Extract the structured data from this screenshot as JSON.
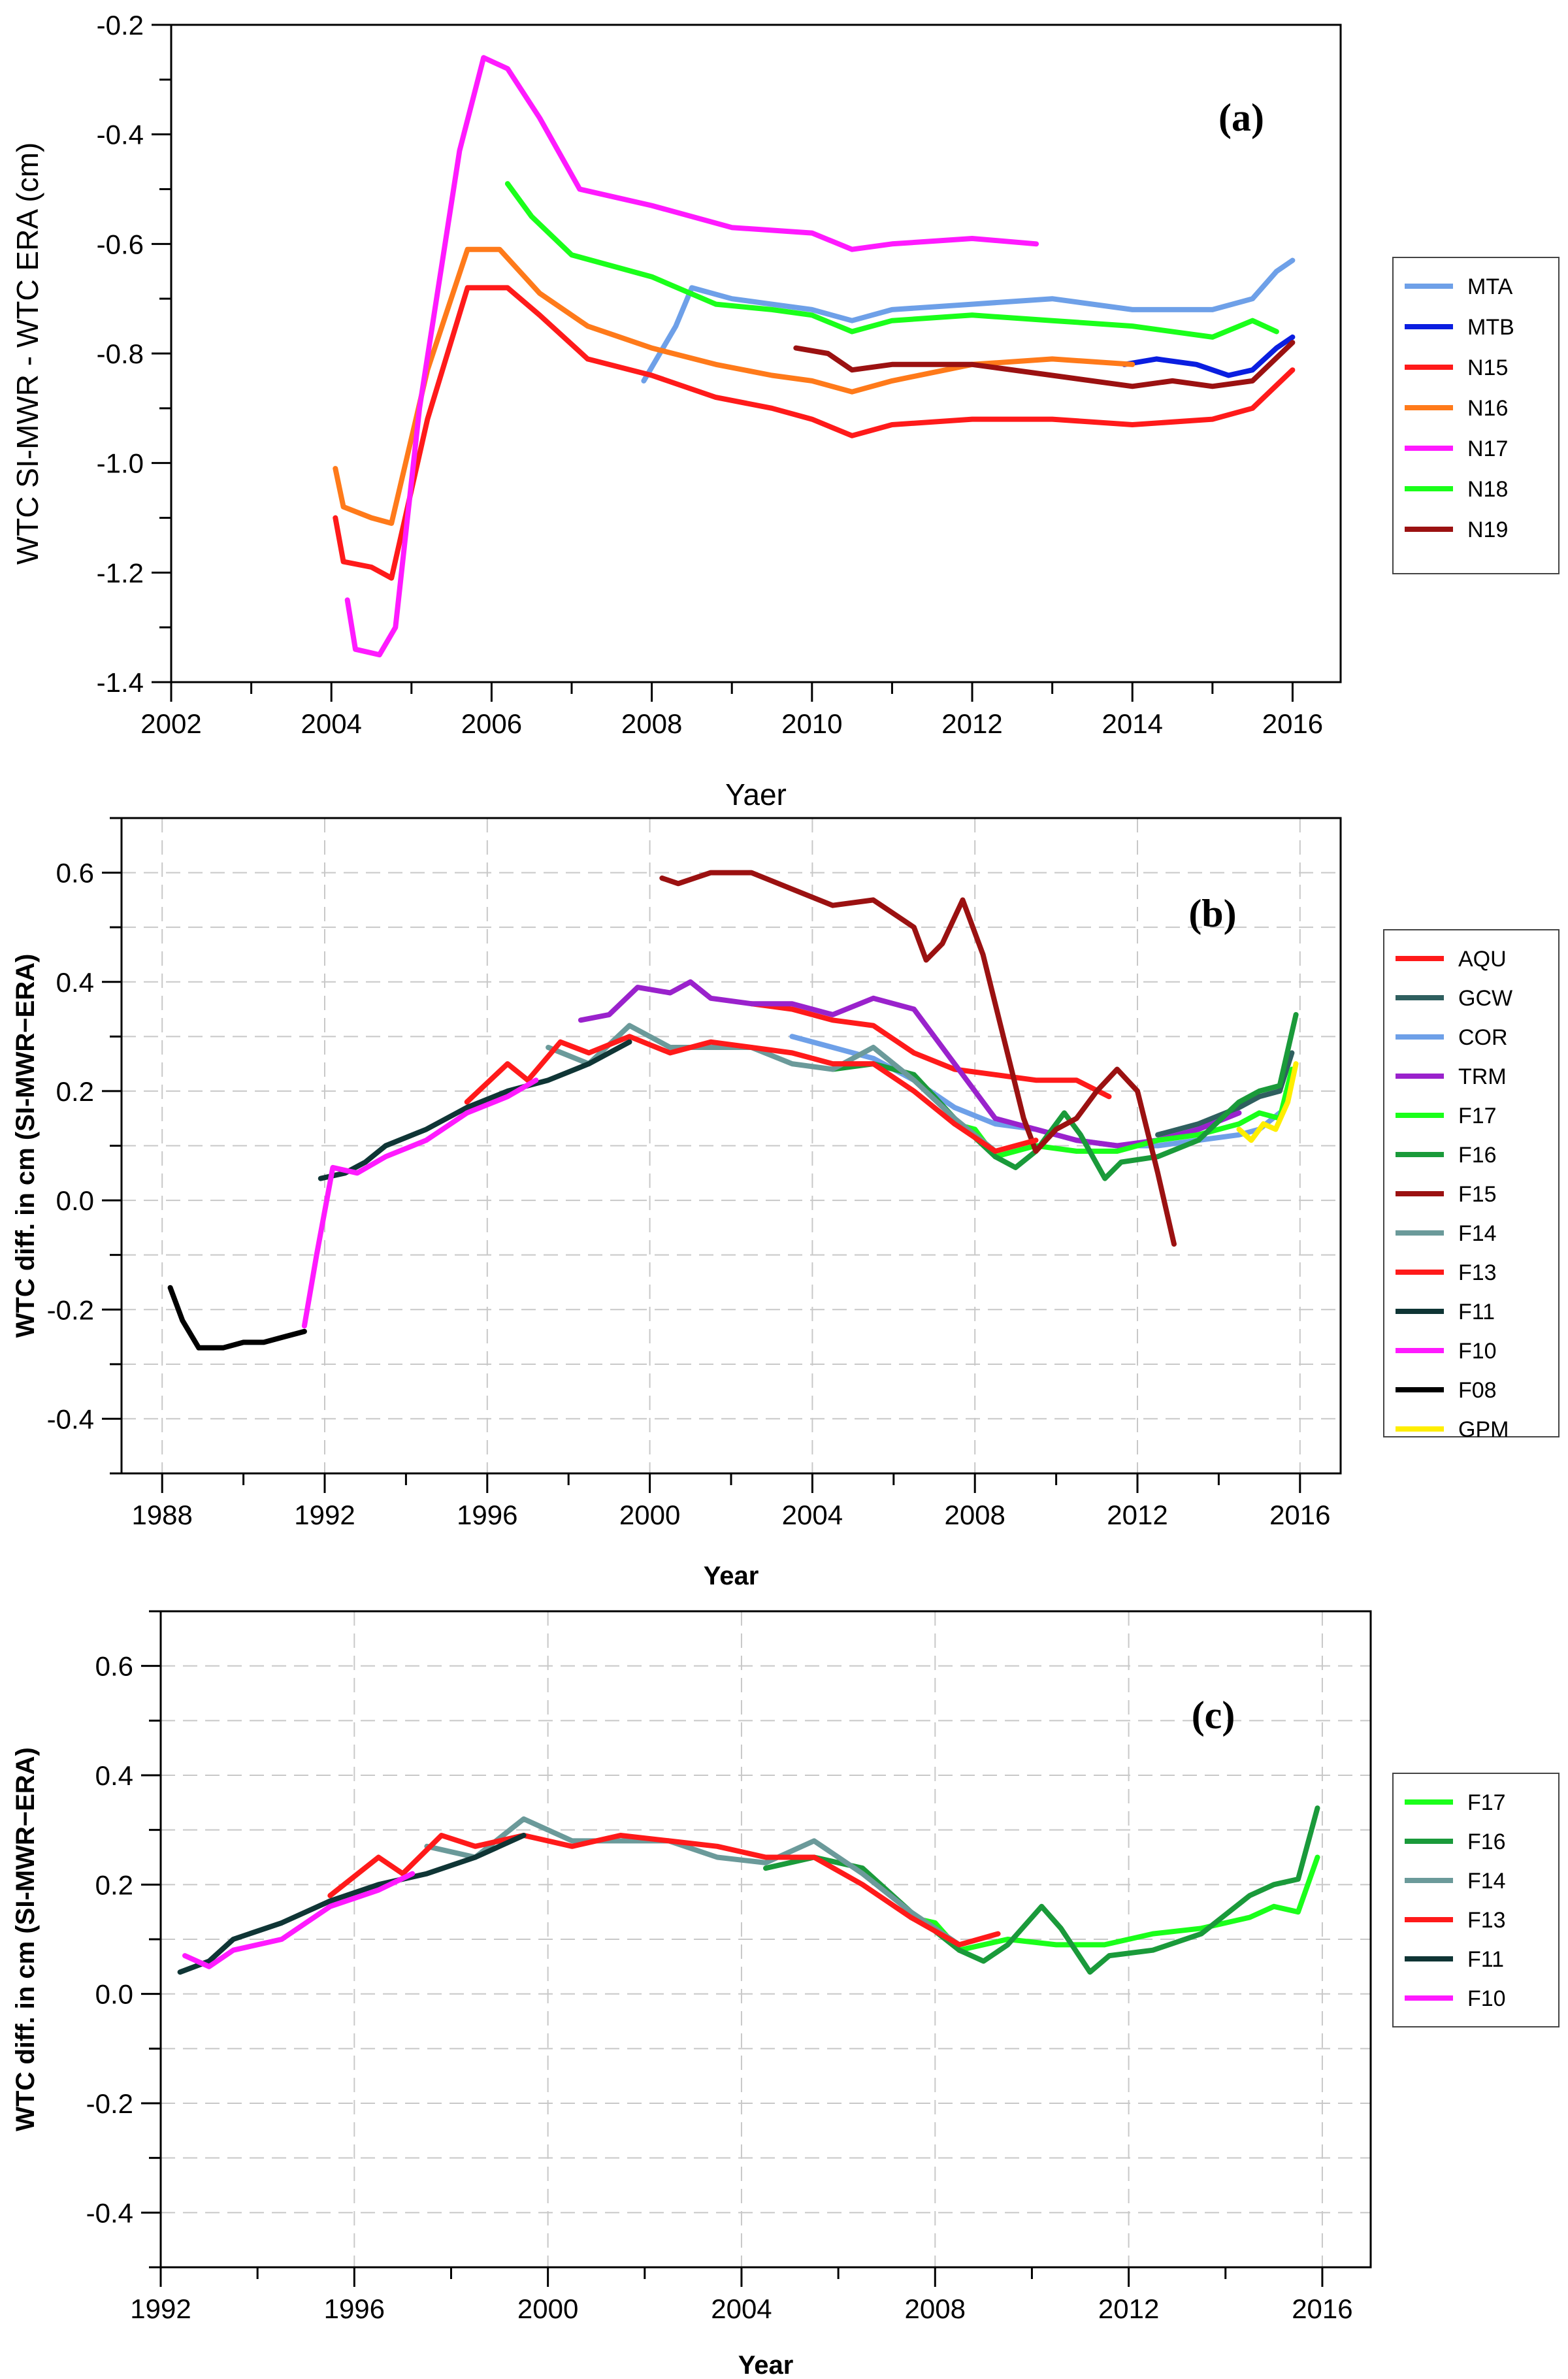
{
  "chart_data": [
    {
      "type": "line",
      "panel_label": "(a)",
      "xlabel": "Yaer",
      "ylabel": "WTC SI-MWR - WTC ERA (cm)",
      "xlim": [
        2002,
        2016.6
      ],
      "ylim": [
        -1.4,
        -0.2
      ],
      "x_ticks": [
        2002,
        2004,
        2006,
        2008,
        2010,
        2012,
        2014,
        2016
      ],
      "y_ticks": [
        -1.4,
        -1.2,
        -1.0,
        -0.8,
        -0.6,
        -0.4,
        -0.2
      ],
      "x_tick_labels": [
        "2002",
        "2004",
        "2006",
        "2008",
        "2010",
        "2012",
        "2014",
        "2016"
      ],
      "y_tick_labels": [
        "-1.4",
        "-1.2",
        "-1.0",
        "-0.8",
        "-0.6",
        "-0.4",
        "-0.2"
      ],
      "grid": false,
      "legend_position": "right",
      "series": [
        {
          "name": "MTA",
          "color": "#6ea0e8",
          "x": [
            2007.9,
            2008.3,
            2008.5,
            2009.0,
            2009.5,
            2010.0,
            2010.5,
            2011.0,
            2012.0,
            2013.0,
            2014.0,
            2014.5,
            2015.0,
            2015.5,
            2015.8,
            2016.0
          ],
          "y": [
            -0.85,
            -0.75,
            -0.68,
            -0.7,
            -0.71,
            -0.72,
            -0.74,
            -0.72,
            -0.71,
            -0.7,
            -0.72,
            -0.72,
            -0.72,
            -0.7,
            -0.65,
            -0.63
          ]
        },
        {
          "name": "MTB",
          "color": "#0a1ee0",
          "x": [
            2013.9,
            2014.3,
            2014.8,
            2015.2,
            2015.5,
            2015.8,
            2016.0
          ],
          "y": [
            -0.82,
            -0.81,
            -0.82,
            -0.84,
            -0.83,
            -0.79,
            -0.77
          ]
        },
        {
          "name": "N15",
          "color": "#ff1a1a",
          "x": [
            2004.05,
            2004.15,
            2004.5,
            2004.75,
            2005.2,
            2005.7,
            2006.2,
            2006.6,
            2007.2,
            2008.0,
            2008.8,
            2009.5,
            2010.0,
            2010.5,
            2011.0,
            2012.0,
            2013.0,
            2014.0,
            2015.0,
            2015.5,
            2016.0
          ],
          "y": [
            -1.1,
            -1.18,
            -1.19,
            -1.21,
            -0.92,
            -0.68,
            -0.68,
            -0.73,
            -0.81,
            -0.84,
            -0.88,
            -0.9,
            -0.92,
            -0.95,
            -0.93,
            -0.92,
            -0.92,
            -0.93,
            -0.92,
            -0.9,
            -0.83
          ]
        },
        {
          "name": "N16",
          "color": "#ff7a1a",
          "x": [
            2004.05,
            2004.15,
            2004.5,
            2004.75,
            2005.2,
            2005.7,
            2006.1,
            2006.6,
            2007.2,
            2008.0,
            2008.8,
            2009.5,
            2010.0,
            2010.5,
            2011.0,
            2012.0,
            2013.0,
            2014.0
          ],
          "y": [
            -1.01,
            -1.08,
            -1.1,
            -1.11,
            -0.83,
            -0.61,
            -0.61,
            -0.69,
            -0.75,
            -0.79,
            -0.82,
            -0.84,
            -0.85,
            -0.87,
            -0.85,
            -0.82,
            -0.81,
            -0.82
          ]
        },
        {
          "name": "N17",
          "color": "#ff1aff",
          "x": [
            2004.2,
            2004.3,
            2004.6,
            2004.8,
            2005.1,
            2005.6,
            2005.9,
            2006.2,
            2006.6,
            2007.1,
            2008.0,
            2009.0,
            2010.0,
            2010.5,
            2011.0,
            2012.0,
            2012.8
          ],
          "y": [
            -1.25,
            -1.34,
            -1.35,
            -1.3,
            -0.9,
            -0.43,
            -0.26,
            -0.28,
            -0.37,
            -0.5,
            -0.53,
            -0.57,
            -0.58,
            -0.61,
            -0.6,
            -0.59,
            -0.6
          ]
        },
        {
          "name": "N18",
          "color": "#1aff1a",
          "x": [
            2006.2,
            2006.5,
            2007.0,
            2008.0,
            2008.8,
            2009.5,
            2010.0,
            2010.5,
            2011.0,
            2012.0,
            2013.0,
            2014.0,
            2015.0,
            2015.5,
            2015.8
          ],
          "y": [
            -0.49,
            -0.55,
            -0.62,
            -0.66,
            -0.71,
            -0.72,
            -0.73,
            -0.76,
            -0.74,
            -0.73,
            -0.74,
            -0.75,
            -0.77,
            -0.74,
            -0.76
          ]
        },
        {
          "name": "N19",
          "color": "#9b1111",
          "x": [
            2009.8,
            2010.2,
            2010.5,
            2011.0,
            2012.0,
            2013.0,
            2014.0,
            2014.5,
            2015.0,
            2015.5,
            2016.0
          ],
          "y": [
            -0.79,
            -0.8,
            -0.83,
            -0.82,
            -0.82,
            -0.84,
            -0.86,
            -0.85,
            -0.86,
            -0.85,
            -0.78
          ]
        }
      ]
    },
    {
      "type": "line",
      "panel_label": "(b)",
      "xlabel": "Year",
      "ylabel": "WTC diff. in cm (SI-MWR−ERA)",
      "xlim": [
        1987,
        2017
      ],
      "ylim": [
        -0.5,
        0.7
      ],
      "x_ticks": [
        1988,
        1992,
        1996,
        2000,
        2004,
        2008,
        2012,
        2016
      ],
      "y_ticks": [
        -0.4,
        -0.2,
        0.0,
        0.2,
        0.4,
        0.6
      ],
      "x_tick_labels": [
        "1988",
        "1992",
        "1996",
        "2000",
        "2004",
        "2008",
        "2012",
        "2016"
      ],
      "y_tick_labels": [
        "-0.4",
        "-0.2",
        "0.0",
        "0.2",
        "0.4",
        "0.6"
      ],
      "grid": true,
      "legend_position": "right",
      "series": [
        {
          "name": "AQU",
          "color": "#ff1a1a",
          "x": [
            2002.5,
            2003.5,
            2004.5,
            2005.5,
            2006.5,
            2007.5,
            2008.5,
            2009.5,
            2010.5,
            2011.3
          ],
          "y": [
            0.36,
            0.35,
            0.33,
            0.32,
            0.27,
            0.24,
            0.23,
            0.22,
            0.22,
            0.19
          ]
        },
        {
          "name": "GCW",
          "color": "#2f5f5f",
          "x": [
            2012.5,
            2013.5,
            2014.5,
            2015.0,
            2015.5,
            2015.8
          ],
          "y": [
            0.12,
            0.14,
            0.17,
            0.19,
            0.2,
            0.27
          ]
        },
        {
          "name": "COR",
          "color": "#6ea0e8",
          "x": [
            2003.5,
            2004.5,
            2005.5,
            2006.5,
            2007.5,
            2008.5,
            2009.5,
            2010.5,
            2011.5,
            2012.5,
            2013.5,
            2014.5,
            2015.0,
            2015.5
          ],
          "y": [
            0.3,
            0.28,
            0.26,
            0.22,
            0.17,
            0.14,
            0.13,
            0.11,
            0.1,
            0.1,
            0.11,
            0.12,
            0.13,
            0.16
          ]
        },
        {
          "name": "TRM",
          "color": "#9a22cc",
          "x": [
            1998.3,
            1999.0,
            1999.7,
            2000.5,
            2001.0,
            2001.5,
            2002.5,
            2003.5,
            2004.5,
            2005.5,
            2006.5,
            2007.5,
            2008.5,
            2009.5,
            2010.5,
            2011.5,
            2012.5,
            2013.5,
            2014.5
          ],
          "y": [
            0.33,
            0.34,
            0.39,
            0.38,
            0.4,
            0.37,
            0.36,
            0.36,
            0.34,
            0.37,
            0.35,
            0.25,
            0.15,
            0.13,
            0.11,
            0.1,
            0.11,
            0.13,
            0.16
          ]
        },
        {
          "name": "F17",
          "color": "#1aff1a",
          "x": [
            2007.5,
            2008.0,
            2008.5,
            2009.5,
            2010.5,
            2011.5,
            2012.5,
            2013.5,
            2014.5,
            2015.0,
            2015.5,
            2015.8
          ],
          "y": [
            0.14,
            0.13,
            0.08,
            0.1,
            0.09,
            0.09,
            0.11,
            0.12,
            0.14,
            0.16,
            0.15,
            0.24
          ]
        },
        {
          "name": "F16",
          "color": "#1a9a3a",
          "x": [
            2004.5,
            2005.5,
            2006.5,
            2007.5,
            2008.5,
            2009.0,
            2009.5,
            2010.2,
            2010.6,
            2011.2,
            2011.6,
            2012.5,
            2013.5,
            2014.5,
            2015.0,
            2015.5,
            2015.9
          ],
          "y": [
            0.24,
            0.25,
            0.23,
            0.15,
            0.08,
            0.06,
            0.09,
            0.16,
            0.12,
            0.04,
            0.07,
            0.08,
            0.11,
            0.18,
            0.2,
            0.21,
            0.34
          ]
        },
        {
          "name": "F15",
          "color": "#9b1111",
          "x": [
            2000.3,
            2000.7,
            2001.5,
            2002.5,
            2003.5,
            2004.5,
            2005.5,
            2006.5,
            2006.8,
            2007.2,
            2007.7,
            2008.2,
            2008.7,
            2009.2,
            2009.5,
            2010.0,
            2010.5,
            2011.0,
            2011.5,
            2012.0,
            2012.5,
            2012.9
          ],
          "y": [
            0.59,
            0.58,
            0.6,
            0.6,
            0.57,
            0.54,
            0.55,
            0.5,
            0.44,
            0.47,
            0.55,
            0.45,
            0.3,
            0.15,
            0.09,
            0.13,
            0.15,
            0.2,
            0.24,
            0.2,
            0.05,
            -0.08
          ]
        },
        {
          "name": "F14",
          "color": "#6b9a9a",
          "x": [
            1997.5,
            1998.5,
            1999.5,
            2000.5,
            2001.5,
            2002.5,
            2003.5,
            2004.5,
            2005.5,
            2006.5,
            2007.5,
            2008.5
          ],
          "y": [
            0.28,
            0.25,
            0.32,
            0.28,
            0.28,
            0.28,
            0.25,
            0.24,
            0.28,
            0.22,
            0.15,
            0.09
          ]
        },
        {
          "name": "F13",
          "color": "#ff1a1a",
          "x": [
            1995.5,
            1996.5,
            1997.0,
            1997.8,
            1998.5,
            1999.5,
            2000.5,
            2001.5,
            2002.5,
            2003.5,
            2004.5,
            2005.5,
            2006.5,
            2007.5,
            2008.5,
            2009.5
          ],
          "y": [
            0.18,
            0.25,
            0.22,
            0.29,
            0.27,
            0.3,
            0.27,
            0.29,
            0.28,
            0.27,
            0.25,
            0.25,
            0.2,
            0.14,
            0.09,
            0.11
          ]
        },
        {
          "name": "F11",
          "color": "#0f3535",
          "x": [
            1991.9,
            1992.5,
            1993.0,
            1993.5,
            1994.5,
            1995.5,
            1996.5,
            1997.5,
            1998.5,
            1999.5
          ],
          "y": [
            0.04,
            0.05,
            0.07,
            0.1,
            0.13,
            0.17,
            0.2,
            0.22,
            0.25,
            0.29
          ]
        },
        {
          "name": "F10",
          "color": "#ff1aff",
          "x": [
            1991.5,
            1991.8,
            1992.2,
            1992.8,
            1993.5,
            1994.5,
            1995.5,
            1996.5,
            1997.2
          ],
          "y": [
            -0.23,
            -0.1,
            0.06,
            0.05,
            0.08,
            0.11,
            0.16,
            0.19,
            0.22
          ]
        },
        {
          "name": "F08",
          "color": "#000000",
          "x": [
            1988.2,
            1988.5,
            1988.9,
            1989.5,
            1990.0,
            1990.5,
            1991.0,
            1991.5
          ],
          "y": [
            -0.16,
            -0.22,
            -0.27,
            -0.27,
            -0.26,
            -0.26,
            -0.25,
            -0.24
          ]
        },
        {
          "name": "GPM",
          "color": "#ffee00",
          "x": [
            2014.5,
            2014.8,
            2015.1,
            2015.4,
            2015.7,
            2015.9
          ],
          "y": [
            0.13,
            0.11,
            0.14,
            0.13,
            0.18,
            0.25
          ]
        }
      ]
    },
    {
      "type": "line",
      "panel_label": "(c)",
      "xlabel": "Year",
      "ylabel": "WTC diff. in cm (SI-MWR−ERA)",
      "xlim": [
        1992,
        2017
      ],
      "ylim": [
        -0.5,
        0.7
      ],
      "x_ticks": [
        1992,
        1996,
        2000,
        2004,
        2008,
        2012,
        2016
      ],
      "y_ticks": [
        -0.4,
        -0.2,
        0.0,
        0.2,
        0.4,
        0.6
      ],
      "x_tick_labels": [
        "1992",
        "1996",
        "2000",
        "2004",
        "2008",
        "2012",
        "2016"
      ],
      "y_tick_labels": [
        "-0.4",
        "-0.2",
        "0.0",
        "0.2",
        "0.4",
        "0.6"
      ],
      "grid": true,
      "legend_position": "right",
      "series": [
        {
          "name": "F17",
          "color": "#1aff1a",
          "x": [
            2007.5,
            2008.0,
            2008.5,
            2009.5,
            2010.5,
            2011.5,
            2012.5,
            2013.5,
            2014.5,
            2015.0,
            2015.5,
            2015.9
          ],
          "y": [
            0.14,
            0.13,
            0.08,
            0.1,
            0.09,
            0.09,
            0.11,
            0.12,
            0.14,
            0.16,
            0.15,
            0.25
          ]
        },
        {
          "name": "F16",
          "color": "#1a9a3a",
          "x": [
            2004.5,
            2005.5,
            2006.5,
            2007.5,
            2008.5,
            2009.0,
            2009.5,
            2010.2,
            2010.6,
            2011.2,
            2011.6,
            2012.5,
            2013.5,
            2014.5,
            2015.0,
            2015.5,
            2015.9
          ],
          "y": [
            0.23,
            0.25,
            0.23,
            0.15,
            0.08,
            0.06,
            0.09,
            0.16,
            0.12,
            0.04,
            0.07,
            0.08,
            0.11,
            0.18,
            0.2,
            0.21,
            0.34
          ]
        },
        {
          "name": "F14",
          "color": "#6b9a9a",
          "x": [
            1997.5,
            1998.5,
            1999.5,
            2000.5,
            2001.5,
            2002.5,
            2003.5,
            2004.5,
            2005.5,
            2006.5,
            2007.5,
            2008.5
          ],
          "y": [
            0.27,
            0.25,
            0.32,
            0.28,
            0.28,
            0.28,
            0.25,
            0.24,
            0.28,
            0.22,
            0.15,
            0.09
          ]
        },
        {
          "name": "F13",
          "color": "#ff1a1a",
          "x": [
            1995.5,
            1996.5,
            1997.0,
            1997.8,
            1998.5,
            1999.5,
            2000.5,
            2001.5,
            2002.5,
            2003.5,
            2004.5,
            2005.5,
            2006.5,
            2007.5,
            2008.5,
            2009.3
          ],
          "y": [
            0.18,
            0.25,
            0.22,
            0.29,
            0.27,
            0.29,
            0.27,
            0.29,
            0.28,
            0.27,
            0.25,
            0.25,
            0.2,
            0.14,
            0.09,
            0.11
          ]
        },
        {
          "name": "F11",
          "color": "#0f3535",
          "x": [
            1992.4,
            1993.0,
            1993.5,
            1994.5,
            1995.5,
            1996.5,
            1997.5,
            1998.5,
            1999.5
          ],
          "y": [
            0.04,
            0.06,
            0.1,
            0.13,
            0.17,
            0.2,
            0.22,
            0.25,
            0.29
          ]
        },
        {
          "name": "F10",
          "color": "#ff1aff",
          "x": [
            1992.5,
            1993.0,
            1993.5,
            1994.5,
            1995.5,
            1996.5,
            1997.2
          ],
          "y": [
            0.07,
            0.05,
            0.08,
            0.1,
            0.16,
            0.19,
            0.22
          ]
        }
      ]
    }
  ]
}
